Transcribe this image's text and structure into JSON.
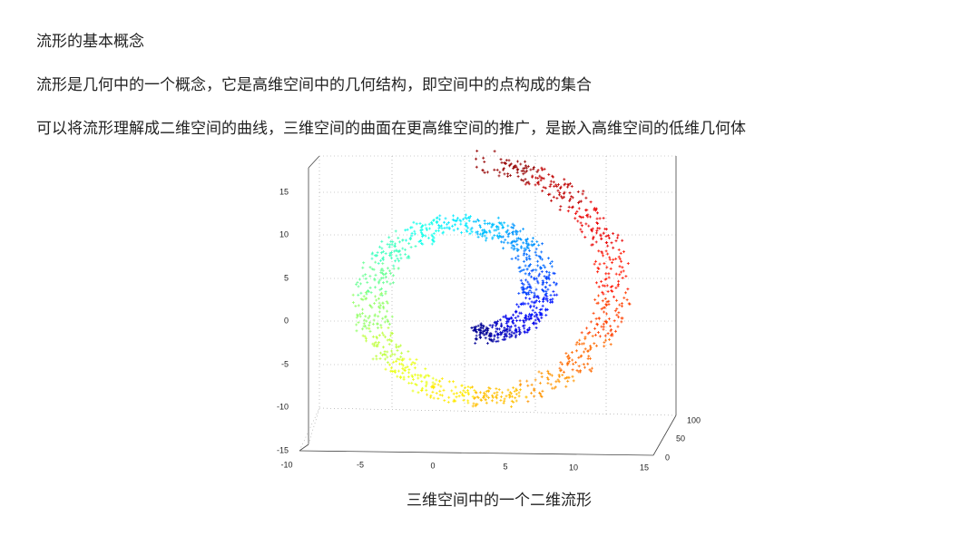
{
  "heading": "流形的基本概念",
  "paragraphs": [
    "流形是几何中的一个概念，它是高维空间中的几何结构，即空间中的点构成的集合",
    "可以将流形理解成二维空间的曲线，三维空间的曲面在更高维空间的推广，是嵌入高维空间的低维几何体"
  ],
  "figure": {
    "y_tick_labels": [
      "15",
      "10",
      "5",
      "0",
      "-5",
      "-10",
      "-15"
    ],
    "x_tick_labels": [
      "-10",
      "-5",
      "0",
      "5",
      "10",
      "15"
    ],
    "z_tick_labels": [
      "0",
      "50",
      "100"
    ],
    "caption": "三维空间中的一个二维流形"
  }
}
